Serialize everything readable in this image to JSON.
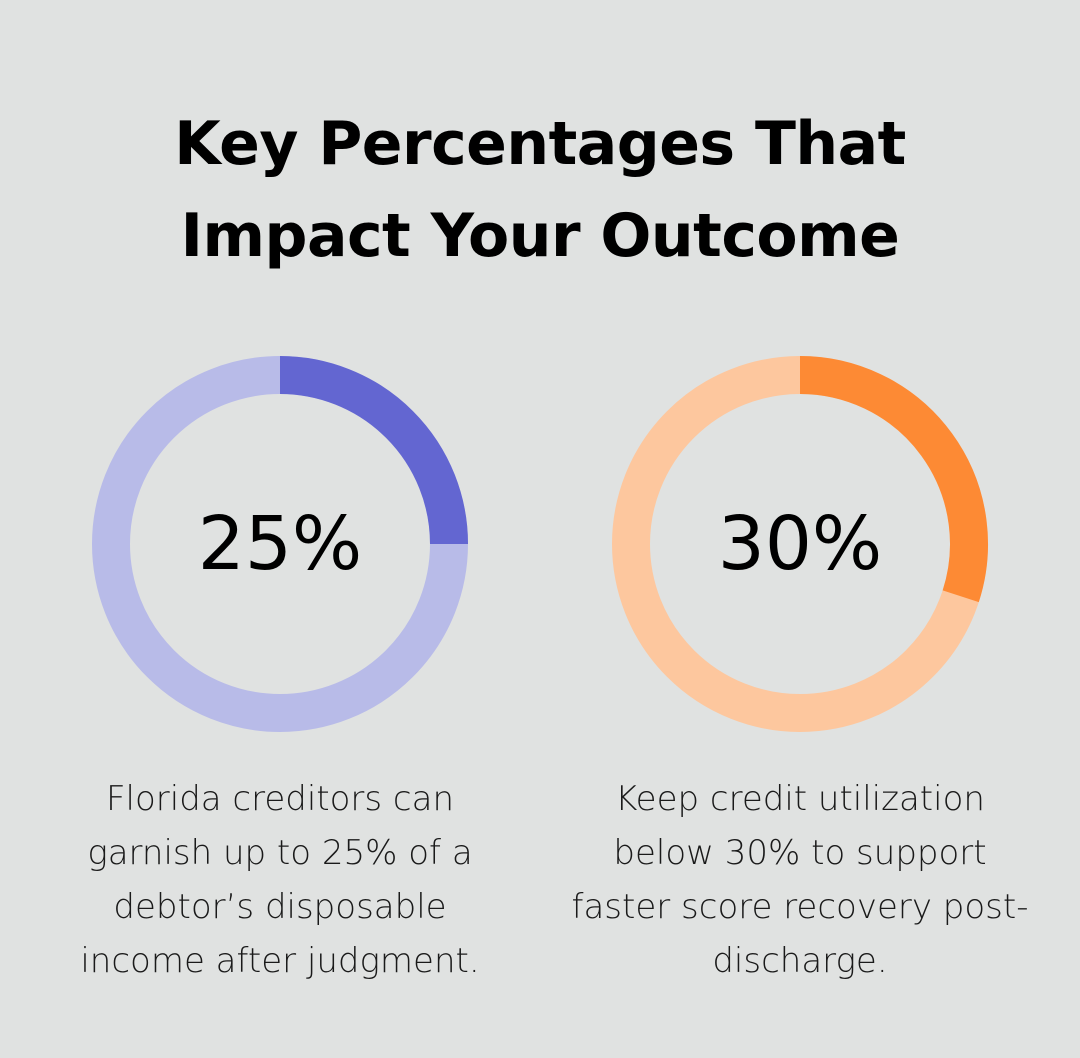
{
  "title": {
    "line1": "Key Percentages That",
    "line2": "Impact Your Outcome"
  },
  "chart_data": [
    {
      "type": "pie",
      "style": "donut",
      "value": 25,
      "max": 100,
      "center_label": "25%",
      "colors": {
        "fill": "#6366d1",
        "track": "#b8bbe8"
      },
      "caption_lines": [
        "Florida creditors can",
        "garnish up to 25% of a",
        "debtor’s disposable",
        "income after judgment."
      ]
    },
    {
      "type": "pie",
      "style": "donut",
      "value": 30,
      "max": 100,
      "center_label": "30%",
      "colors": {
        "fill": "#fd8a34",
        "track": "#fdc79e"
      },
      "caption_lines": [
        "Keep credit utilization",
        "below 30% to support",
        "faster score recovery post-",
        "discharge."
      ]
    }
  ]
}
